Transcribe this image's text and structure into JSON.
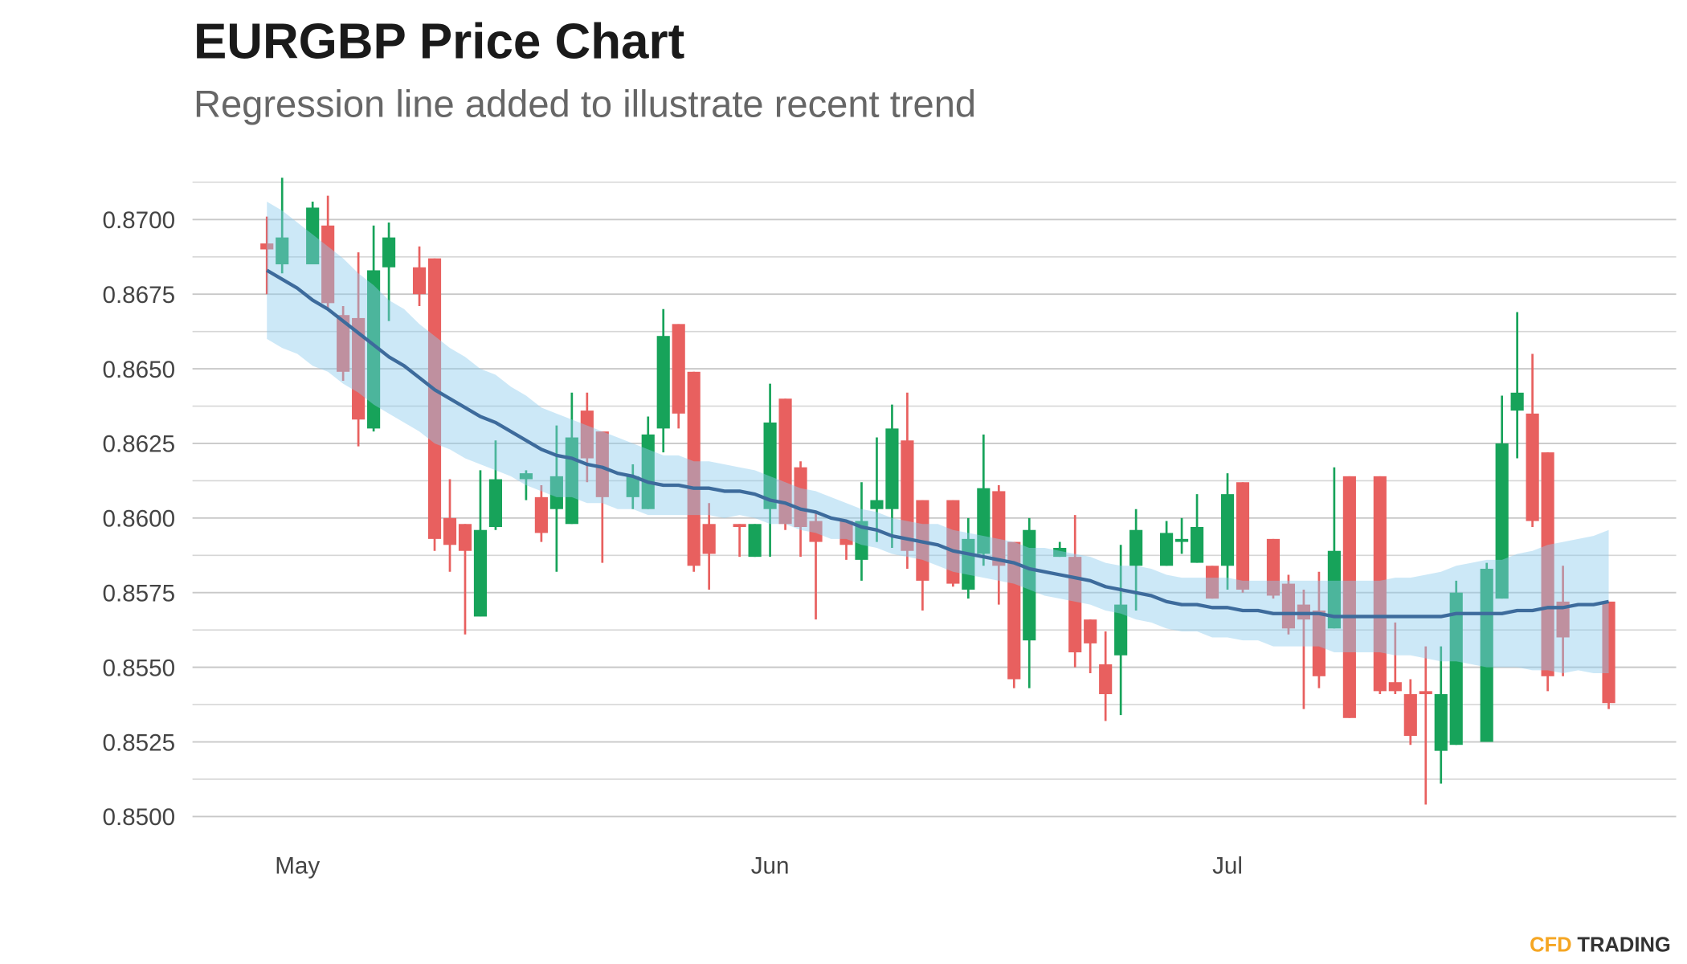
{
  "chart_data": {
    "type": "candlestick",
    "title": "EURGBP Price Chart",
    "subtitle": "Regression line added to illustrate recent trend",
    "logo": [
      "CFD",
      "TRADING"
    ],
    "up_color": "#17a35a",
    "down_color": "#e8605f",
    "categories": [
      null,
      null,
      "May",
      null,
      null,
      null,
      null,
      null,
      null,
      null,
      null,
      null,
      null,
      null,
      null,
      null,
      null,
      null,
      null,
      null,
      null,
      null,
      null,
      null,
      null,
      null,
      null,
      null,
      null,
      null,
      null,
      null,
      null,
      "Jun",
      null,
      null,
      null,
      null,
      null,
      null,
      null,
      null,
      null,
      null,
      null,
      null,
      null,
      null,
      null,
      null,
      null,
      null,
      null,
      null,
      null,
      null,
      null,
      null,
      null,
      null,
      null,
      null,
      null,
      "Jul",
      null,
      null,
      null,
      null,
      null,
      null,
      null,
      null,
      null,
      null,
      null,
      null,
      null,
      null,
      null,
      null,
      null,
      null,
      null,
      null,
      null,
      null,
      null,
      null,
      null
    ],
    "open": [
      0.8692,
      0.8685,
      null,
      0.8685,
      0.8698,
      0.8668,
      0.8667,
      0.863,
      0.8684,
      null,
      0.8684,
      0.8687,
      0.86,
      0.8598,
      0.8567,
      0.8597,
      null,
      0.8613,
      0.8607,
      0.8603,
      0.8598,
      0.8636,
      0.8629,
      null,
      0.8607,
      0.8603,
      0.863,
      0.8665,
      0.8649,
      0.8598,
      null,
      0.8598,
      0.8587,
      0.8603,
      0.864,
      0.8617,
      0.8599,
      null,
      0.8599,
      0.8586,
      0.8603,
      0.8603,
      0.8626,
      0.8606,
      null,
      0.8606,
      0.8576,
      0.8588,
      0.8609,
      0.8592,
      0.8559,
      null,
      0.8587,
      0.8587,
      0.8566,
      0.8551,
      0.8554,
      0.8584,
      null,
      0.8584,
      0.8592,
      0.8585,
      0.8584,
      0.8584,
      0.8612,
      null,
      0.8593,
      0.8578,
      0.8571,
      0.8569,
      0.8563,
      0.8614,
      null,
      0.8614,
      0.8545,
      0.8541,
      0.8542,
      0.8522,
      0.8524,
      null,
      0.8525,
      0.8573,
      0.8636,
      0.8635,
      0.8622,
      0.8572,
      null,
      null,
      0.8572
    ],
    "high": [
      0.8701,
      0.8714,
      null,
      0.8706,
      0.8708,
      0.8671,
      0.8689,
      0.8698,
      0.8699,
      null,
      0.8691,
      0.8687,
      0.8613,
      0.8598,
      0.8616,
      0.8626,
      null,
      0.8616,
      0.8611,
      0.8631,
      0.8642,
      0.8642,
      0.8629,
      null,
      0.8618,
      0.8634,
      0.867,
      0.8665,
      0.8649,
      0.8605,
      null,
      0.8598,
      0.8598,
      0.8645,
      0.864,
      0.8619,
      0.8602,
      null,
      0.8599,
      0.8612,
      0.8627,
      0.8638,
      0.8642,
      0.8606,
      null,
      0.8606,
      0.86,
      0.8628,
      0.8611,
      0.8592,
      0.86,
      null,
      0.8592,
      0.8601,
      0.8566,
      0.8562,
      0.8591,
      0.8603,
      null,
      0.8599,
      0.86,
      0.8608,
      0.8584,
      0.8615,
      0.8612,
      null,
      0.8593,
      0.8581,
      0.8576,
      0.8582,
      0.8617,
      0.8614,
      null,
      0.8614,
      0.8565,
      0.8546,
      0.8557,
      0.8557,
      0.8579,
      null,
      0.8585,
      0.8641,
      0.8669,
      0.8655,
      0.8622,
      0.8584,
      null,
      null,
      0.8572
    ],
    "low": [
      0.8675,
      0.8682,
      null,
      0.8685,
      0.867,
      0.8646,
      0.8624,
      0.8629,
      0.8666,
      null,
      0.8671,
      0.8589,
      0.8582,
      0.8561,
      0.8567,
      0.8596,
      null,
      0.8606,
      0.8592,
      0.8582,
      0.8598,
      0.8612,
      0.8585,
      null,
      0.8603,
      0.8603,
      0.8622,
      0.863,
      0.8582,
      0.8576,
      null,
      0.8587,
      0.8587,
      0.8587,
      0.8596,
      0.8587,
      0.8566,
      null,
      0.8586,
      0.8579,
      0.8592,
      0.859,
      0.8583,
      0.8569,
      null,
      0.8577,
      0.8573,
      0.8584,
      0.8571,
      0.8543,
      0.8543,
      null,
      0.8587,
      0.855,
      0.8548,
      0.8532,
      0.8534,
      0.8569,
      null,
      0.8584,
      0.8588,
      0.8585,
      0.8573,
      0.8576,
      0.8575,
      null,
      0.8573,
      0.8561,
      0.8536,
      0.8543,
      0.8563,
      0.8533,
      null,
      0.8541,
      0.8541,
      0.8524,
      0.8504,
      0.8511,
      0.8524,
      null,
      0.8525,
      0.8573,
      0.862,
      0.8597,
      0.8542,
      0.8547,
      null,
      null,
      0.8536
    ],
    "close": [
      0.869,
      0.8694,
      null,
      0.8704,
      0.8672,
      0.8649,
      0.8633,
      0.8683,
      0.8694,
      null,
      0.8675,
      0.8593,
      0.8591,
      0.8589,
      0.8596,
      0.8613,
      null,
      0.8615,
      0.8595,
      0.8614,
      0.8627,
      0.862,
      0.8607,
      null,
      0.8614,
      0.8628,
      0.8661,
      0.8635,
      0.8584,
      0.8588,
      null,
      0.8597,
      0.8598,
      0.8632,
      0.8598,
      0.8597,
      0.8592,
      null,
      0.8591,
      0.8599,
      0.8606,
      0.863,
      0.8589,
      0.8579,
      null,
      0.8578,
      0.8593,
      0.861,
      0.8584,
      0.8546,
      0.8596,
      null,
      0.859,
      0.8555,
      0.8558,
      0.8541,
      0.8571,
      0.8596,
      null,
      0.8595,
      0.8593,
      0.8597,
      0.8573,
      0.8608,
      0.8576,
      null,
      0.8574,
      0.8563,
      0.8566,
      0.8547,
      0.8589,
      0.8533,
      null,
      0.8542,
      0.8542,
      0.8527,
      0.8541,
      0.8541,
      0.8575,
      null,
      0.8583,
      0.8625,
      0.8642,
      0.8599,
      0.8547,
      0.856,
      null,
      null,
      0.8538
    ],
    "regression": {
      "color": "#3d6b9c",
      "band_color": "#8ecdee",
      "values": [
        0.8683,
        0.868,
        0.8677,
        0.8673,
        0.867,
        0.8666,
        0.8662,
        0.8658,
        0.8654,
        0.8651,
        0.8647,
        0.8643,
        0.864,
        0.8637,
        0.8634,
        0.8632,
        0.8629,
        0.8626,
        0.8623,
        0.8621,
        0.862,
        0.8618,
        0.8617,
        0.8615,
        0.8614,
        0.8612,
        0.8611,
        0.8611,
        0.861,
        0.861,
        0.8609,
        0.8609,
        0.8608,
        0.8606,
        0.8605,
        0.8603,
        0.8602,
        0.86,
        0.8599,
        0.8597,
        0.8596,
        0.8594,
        0.8593,
        0.8592,
        0.8591,
        0.8589,
        0.8588,
        0.8587,
        0.8586,
        0.8585,
        0.8583,
        0.8582,
        0.8581,
        0.858,
        0.8579,
        0.8577,
        0.8576,
        0.8575,
        0.8574,
        0.8572,
        0.8571,
        0.8571,
        0.857,
        0.857,
        0.8569,
        0.8569,
        0.8568,
        0.8568,
        0.8568,
        0.8568,
        0.8567,
        0.8567,
        0.8567,
        0.8567,
        0.8567,
        0.8567,
        0.8567,
        0.8567,
        0.8568,
        0.8568,
        0.8568,
        0.8568,
        0.8569,
        0.8569,
        0.857,
        0.857,
        0.8571,
        0.8571,
        0.8572
      ],
      "upper": [
        0.8706,
        0.8703,
        0.8699,
        0.8695,
        0.8691,
        0.8687,
        0.8682,
        0.8678,
        0.8673,
        0.867,
        0.8665,
        0.8661,
        0.8657,
        0.8654,
        0.865,
        0.8648,
        0.8644,
        0.8641,
        0.8637,
        0.8635,
        0.8633,
        0.8631,
        0.8629,
        0.8627,
        0.8625,
        0.8623,
        0.8621,
        0.8621,
        0.8619,
        0.8619,
        0.8618,
        0.8617,
        0.8616,
        0.8614,
        0.8612,
        0.861,
        0.8609,
        0.8607,
        0.8605,
        0.8603,
        0.8602,
        0.86,
        0.8599,
        0.8598,
        0.8598,
        0.8596,
        0.8595,
        0.8594,
        0.8593,
        0.8592,
        0.859,
        0.859,
        0.8589,
        0.8588,
        0.8587,
        0.8585,
        0.8584,
        0.8584,
        0.8583,
        0.8581,
        0.858,
        0.858,
        0.858,
        0.858,
        0.8579,
        0.8579,
        0.8579,
        0.8579,
        0.8579,
        0.8579,
        0.8579,
        0.8579,
        0.8579,
        0.8579,
        0.858,
        0.858,
        0.8581,
        0.8582,
        0.8584,
        0.8585,
        0.8586,
        0.8586,
        0.8588,
        0.8589,
        0.8591,
        0.8592,
        0.8593,
        0.8594,
        0.8596
      ],
      "lower": [
        0.866,
        0.8657,
        0.8655,
        0.8651,
        0.8649,
        0.8645,
        0.8642,
        0.8638,
        0.8635,
        0.8632,
        0.8629,
        0.8625,
        0.8623,
        0.862,
        0.8618,
        0.8616,
        0.8614,
        0.8611,
        0.8609,
        0.8607,
        0.8607,
        0.8605,
        0.8605,
        0.8603,
        0.8603,
        0.8601,
        0.8601,
        0.8601,
        0.8601,
        0.8601,
        0.86,
        0.8601,
        0.86,
        0.8598,
        0.8598,
        0.8596,
        0.8595,
        0.8593,
        0.8593,
        0.8591,
        0.859,
        0.8588,
        0.8587,
        0.8586,
        0.8584,
        0.8582,
        0.8581,
        0.858,
        0.8579,
        0.8578,
        0.8576,
        0.8574,
        0.8573,
        0.8572,
        0.8571,
        0.8569,
        0.8568,
        0.8566,
        0.8565,
        0.8563,
        0.8562,
        0.8562,
        0.856,
        0.856,
        0.8559,
        0.8559,
        0.8557,
        0.8557,
        0.8557,
        0.8557,
        0.8555,
        0.8555,
        0.8555,
        0.8555,
        0.8554,
        0.8554,
        0.8553,
        0.8552,
        0.8552,
        0.8551,
        0.855,
        0.855,
        0.855,
        0.8549,
        0.8549,
        0.8548,
        0.8549,
        0.8548,
        0.8548
      ]
    },
    "ylim": [
      0.8487,
      0.8717
    ],
    "yticks": [
      {
        "value": 0.85,
        "label": "0.8500"
      },
      {
        "value": 0.8525,
        "label": "0.8525"
      },
      {
        "value": 0.855,
        "label": "0.8550"
      },
      {
        "value": 0.8575,
        "label": "0.8575"
      },
      {
        "value": 0.86,
        "label": "0.8600"
      },
      {
        "value": 0.8625,
        "label": "0.8625"
      },
      {
        "value": 0.865,
        "label": "0.8650"
      },
      {
        "value": 0.8675,
        "label": "0.8675"
      },
      {
        "value": 0.87,
        "label": "0.8700"
      }
    ],
    "minor_yticks": [
      0.85125,
      0.85375,
      0.85625,
      0.85875,
      0.86125,
      0.86375,
      0.86625,
      0.86875,
      0.87125
    ],
    "grid": true
  }
}
